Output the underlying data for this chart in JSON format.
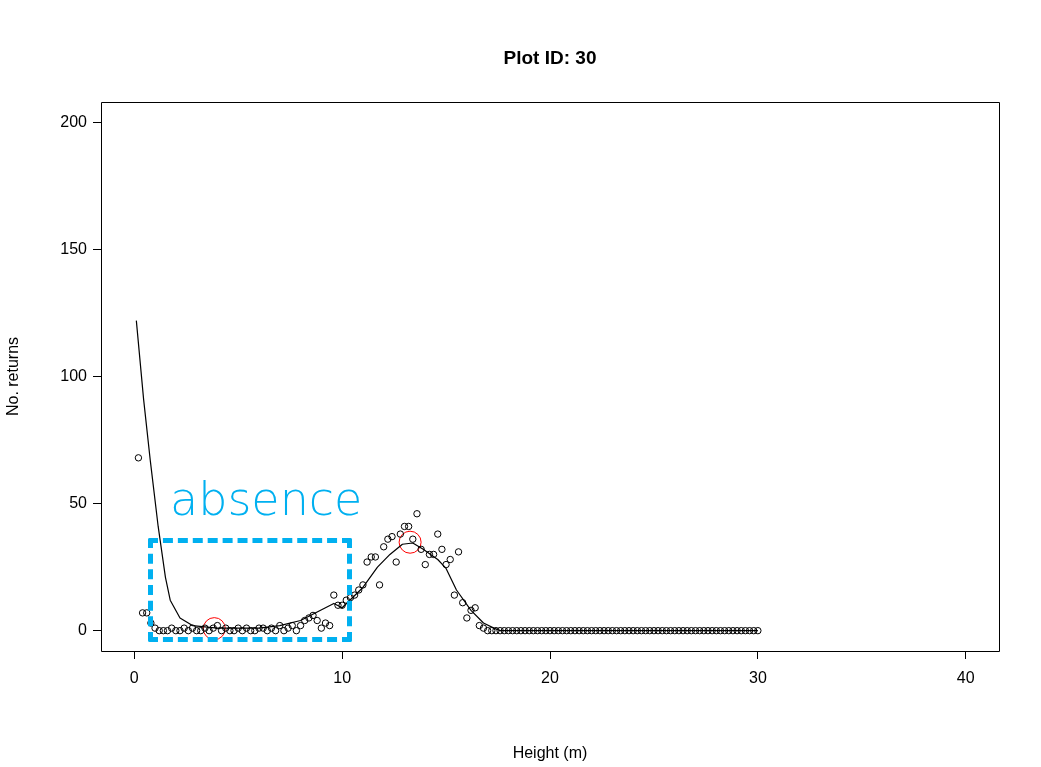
{
  "chart_data": {
    "type": "scatter",
    "title": "Plot ID: 30",
    "xlabel": "Height (m)",
    "ylabel": "No. returns",
    "xlim": [
      -1.6,
      41.6
    ],
    "ylim": [
      -8,
      208
    ],
    "xticks": [
      0,
      10,
      20,
      30,
      40
    ],
    "yticks": [
      0,
      50,
      100,
      150,
      200
    ],
    "grid": false,
    "legend": false,
    "marker": "circle",
    "annotations": [
      "absence"
    ],
    "series": [
      {
        "color": "#000000",
        "x": [
          0.2,
          0.4,
          0.6,
          0.8,
          1.0,
          1.2,
          1.4,
          1.6,
          1.8,
          2.0,
          2.2,
          2.4,
          2.6,
          2.8,
          3.0,
          3.2,
          3.4,
          3.6,
          3.8,
          4.0,
          4.2,
          4.4,
          4.6,
          4.8,
          5.0,
          5.2,
          5.4,
          5.6,
          5.8,
          6.0,
          6.2,
          6.4,
          6.6,
          6.8,
          7.0,
          7.2,
          7.4,
          7.6,
          7.8,
          8.0,
          8.2,
          8.4,
          8.6,
          8.8,
          9.0,
          9.2,
          9.4,
          9.6,
          9.8,
          10.0,
          10.2,
          10.4,
          10.6,
          10.8,
          11.0,
          11.2,
          11.4,
          11.6,
          11.8,
          12.0,
          12.2,
          12.4,
          12.6,
          12.8,
          13.0,
          13.2,
          13.4,
          13.6,
          13.8,
          14.0,
          14.2,
          14.4,
          14.6,
          14.8,
          15.0,
          15.2,
          15.4,
          15.6,
          15.8,
          16.0,
          16.2,
          16.4,
          16.6,
          16.8,
          17.0,
          17.2,
          17.4,
          17.6,
          17.8,
          18.0,
          18.2,
          18.4,
          18.6,
          18.8,
          19.0,
          19.2,
          19.4,
          19.6,
          19.8,
          20.0,
          20.2,
          20.4,
          20.6,
          20.8,
          21.0,
          21.2,
          21.4,
          21.6,
          21.8,
          22.0,
          22.2,
          22.4,
          22.6,
          22.8,
          23.0,
          23.2,
          23.4,
          23.6,
          23.8,
          24.0,
          24.2,
          24.4,
          24.6,
          24.8,
          25.0,
          25.2,
          25.4,
          25.6,
          25.8,
          26.0,
          26.2,
          26.4,
          26.6,
          26.8,
          27.0,
          27.2,
          27.4,
          27.6,
          27.8,
          28.0,
          28.2,
          28.4,
          28.6,
          28.8,
          29.0,
          29.2,
          29.4,
          29.6,
          29.8,
          30.0
        ],
        "values": [
          68,
          7,
          7,
          3,
          1,
          0,
          0,
          0,
          1,
          0,
          0,
          1,
          0,
          1,
          0,
          0,
          1,
          0,
          1,
          2,
          0,
          1,
          0,
          0,
          1,
          0,
          1,
          0,
          0,
          1,
          1,
          0,
          1,
          0,
          2,
          0,
          1,
          2,
          0,
          2,
          4,
          5,
          6,
          4,
          1,
          3,
          2,
          14,
          10,
          10,
          12,
          13,
          14,
          16,
          18,
          27,
          29,
          29,
          18,
          33,
          36,
          37,
          27,
          38,
          41,
          41,
          36,
          46,
          32,
          26,
          30,
          30,
          38,
          32,
          26,
          28,
          14,
          31,
          11,
          5,
          8,
          9,
          2,
          1,
          0,
          0,
          0,
          0,
          0,
          0,
          0,
          0,
          0,
          0,
          0,
          0,
          0,
          0,
          0,
          0,
          0,
          0,
          0,
          0,
          0,
          0,
          0,
          0,
          0,
          0,
          0,
          0,
          0,
          0,
          0,
          0,
          0,
          0,
          0,
          0,
          0,
          0,
          0,
          0,
          0,
          0,
          0,
          0,
          0,
          0,
          0,
          0,
          0,
          0,
          0,
          0,
          0,
          0,
          0,
          0,
          0,
          0,
          0,
          0,
          0,
          0,
          0,
          0,
          0,
          0
        ]
      },
      {
        "type": "line",
        "color": "#000000",
        "marker": "none",
        "x": [
          0.1,
          0.45,
          0.77,
          1.15,
          1.5,
          1.73,
          2.2,
          2.8,
          4,
          5,
          6,
          7,
          8,
          9.6,
          10,
          11,
          11.7,
          12.3,
          12.9,
          13.4,
          13.9,
          14.6,
          15,
          15.5,
          16.2,
          16.8,
          17.3,
          17.6,
          30
        ],
        "values": [
          122,
          91,
          67,
          41,
          21,
          12,
          5,
          2,
          1,
          1,
          1,
          2,
          4,
          10.7,
          9,
          17,
          25,
          30,
          34,
          34.5,
          32,
          28,
          24.5,
          16,
          8,
          3,
          1,
          0,
          0
        ]
      },
      {
        "type": "scatter",
        "color": "#ff0000",
        "x": [
          3.85,
          13.27
        ],
        "values": [
          0.8,
          34.8
        ]
      }
    ]
  }
}
